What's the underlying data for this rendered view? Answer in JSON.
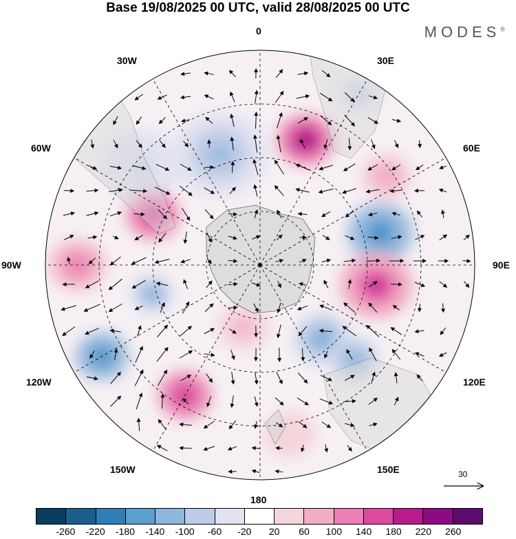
{
  "title": "Base 19/08/2025 00 UTC, valid 28/08/2025 00 UTC",
  "brand": "MODES",
  "brand_mark": "®",
  "longitude_labels": {
    "top": "0",
    "bottom": "180",
    "left": "90W",
    "right": "90E",
    "w30": "30W",
    "w60": "60W",
    "w120": "120W",
    "w150": "150W",
    "e30": "30E",
    "e60": "60E",
    "e120": "120E",
    "e150": "150E"
  },
  "reference_vector": {
    "label": "30"
  },
  "colorbar": {
    "colors": [
      "#0b3d5e",
      "#1b5e8c",
      "#2f7fb6",
      "#5a9fcf",
      "#8db7dc",
      "#bccbe6",
      "#e2e2f0",
      "#ffffff",
      "#f6d4dc",
      "#f1aec5",
      "#ec7fb5",
      "#dd4aa0",
      "#b81c8c",
      "#8c0a82",
      "#5c0c6e"
    ],
    "ticks": [
      "-260",
      "-220",
      "-180",
      "-140",
      "-100",
      "-60",
      "-20",
      "20",
      "60",
      "100",
      "140",
      "180",
      "220",
      "260"
    ]
  },
  "anomalies": [
    {
      "lon": 20,
      "r": 0.62,
      "value": 240,
      "size": 0.14
    },
    {
      "lon": 55,
      "r": 0.72,
      "value": 100,
      "size": 0.12
    },
    {
      "lon": 75,
      "r": 0.58,
      "value": -200,
      "size": 0.16
    },
    {
      "lon": 100,
      "r": 0.55,
      "value": 190,
      "size": 0.17
    },
    {
      "lon": 140,
      "r": 0.45,
      "value": -140,
      "size": 0.14
    },
    {
      "lon": 135,
      "r": 0.62,
      "value": -120,
      "size": 0.12
    },
    {
      "lon": -20,
      "r": 0.55,
      "value": -100,
      "size": 0.22
    },
    {
      "lon": -50,
      "r": 0.72,
      "value": -60,
      "size": 0.18
    },
    {
      "lon": -65,
      "r": 0.55,
      "value": 200,
      "size": 0.13
    },
    {
      "lon": -90,
      "r": 0.85,
      "value": 130,
      "size": 0.14
    },
    {
      "lon": -105,
      "r": 0.52,
      "value": -140,
      "size": 0.1
    },
    {
      "lon": -120,
      "r": 0.85,
      "value": -200,
      "size": 0.13
    },
    {
      "lon": -150,
      "r": 0.7,
      "value": 200,
      "size": 0.13
    },
    {
      "lon": -165,
      "r": 0.3,
      "value": 80,
      "size": 0.12
    },
    {
      "lon": 170,
      "r": 0.8,
      "value": 60,
      "size": 0.12
    },
    {
      "lon": 30,
      "r": 0.92,
      "value": -80,
      "size": 0.1
    }
  ]
}
